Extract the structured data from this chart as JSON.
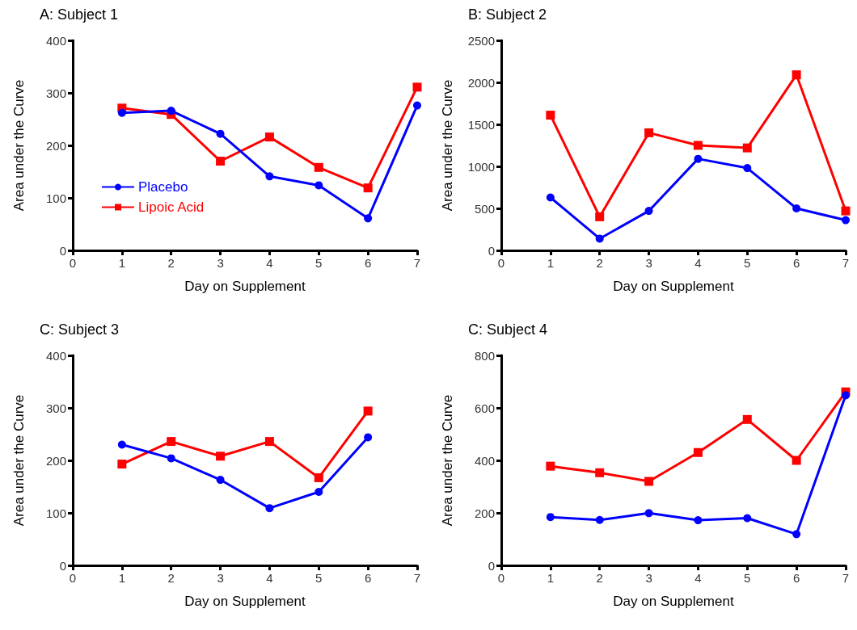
{
  "chart_data": [
    {
      "type": "line",
      "title": "A: Subject 1",
      "xlabel": "Day on Supplement",
      "ylabel": "Area under the Curve",
      "x": [
        1,
        2,
        3,
        4,
        5,
        6,
        7
      ],
      "xlim": [
        0,
        7
      ],
      "xticks": [
        0,
        1,
        2,
        3,
        4,
        5,
        6,
        7
      ],
      "ylim": [
        0,
        400
      ],
      "yticks": [
        0,
        100,
        200,
        300,
        400
      ],
      "grid": false,
      "legend": "bottom left",
      "series": [
        {
          "name": "Placebo",
          "color": "#0000ff",
          "marker": "circle",
          "values": [
            262,
            266,
            222,
            141,
            124,
            61,
            276
          ]
        },
        {
          "name": "Lipoic Acid",
          "color": "#ff0000",
          "marker": "square",
          "values": [
            271,
            259,
            170,
            216,
            158,
            119,
            311
          ]
        }
      ]
    },
    {
      "type": "line",
      "title": "B: Subject 2",
      "xlabel": "Day on Supplement",
      "ylabel": "Area under the Curve",
      "x": [
        1,
        2,
        3,
        4,
        5,
        6,
        7
      ],
      "xlim": [
        0,
        7
      ],
      "xticks": [
        0,
        1,
        2,
        3,
        4,
        5,
        6,
        7
      ],
      "ylim": [
        0,
        2500
      ],
      "yticks": [
        0,
        500,
        1000,
        1500,
        2000,
        2500
      ],
      "grid": false,
      "legend": false,
      "series": [
        {
          "color": "#0000ff",
          "marker": "circle",
          "values": [
            630,
            140,
            470,
            1090,
            980,
            500,
            360
          ]
        },
        {
          "color": "#ff0000",
          "marker": "square",
          "values": [
            1610,
            400,
            1400,
            1250,
            1220,
            2090,
            470
          ]
        }
      ]
    },
    {
      "type": "line",
      "title": "C: Subject 3",
      "xlabel": "Day on Supplement",
      "ylabel": "Area under the Curve",
      "x": [
        1,
        2,
        3,
        4,
        5,
        6
      ],
      "xlim": [
        0,
        7
      ],
      "xticks": [
        0,
        1,
        2,
        3,
        4,
        5,
        6,
        7
      ],
      "ylim": [
        0,
        400
      ],
      "yticks": [
        0,
        100,
        200,
        300,
        400
      ],
      "grid": false,
      "legend": false,
      "series": [
        {
          "color": "#0000ff",
          "marker": "circle",
          "values": [
            230,
            204,
            163,
            109,
            140,
            244
          ]
        },
        {
          "color": "#ff0000",
          "marker": "square",
          "values": [
            193,
            236,
            208,
            236,
            167,
            294
          ]
        }
      ]
    },
    {
      "type": "line",
      "title": "C: Subject 4",
      "xlabel": "Day on Supplement",
      "ylabel": "Area under the Curve",
      "x": [
        1,
        2,
        3,
        4,
        5,
        6,
        7
      ],
      "xlim": [
        0,
        7
      ],
      "xticks": [
        0,
        1,
        2,
        3,
        4,
        5,
        6,
        7
      ],
      "ylim": [
        0,
        800
      ],
      "yticks": [
        0,
        200,
        400,
        600,
        800
      ],
      "grid": false,
      "legend": false,
      "series": [
        {
          "color": "#0000ff",
          "marker": "circle",
          "values": [
            184,
            173,
            199,
            172,
            180,
            119,
            648
          ]
        },
        {
          "color": "#ff0000",
          "marker": "square",
          "values": [
            378,
            353,
            320,
            430,
            556,
            400,
            661
          ]
        }
      ]
    }
  ]
}
